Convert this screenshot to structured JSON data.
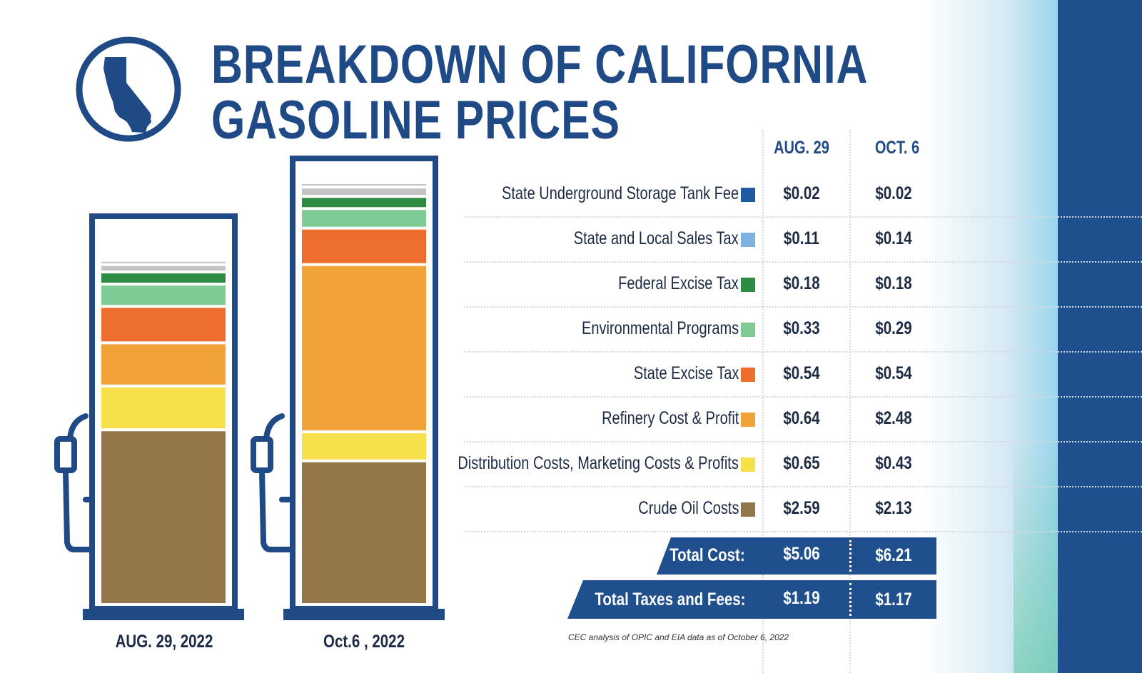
{
  "title_lines": [
    "BREAKDOWN OF CALIFORNIA",
    "GASOLINE PRICES"
  ],
  "colors": {
    "brand_blue": "#1f4f8c",
    "text_dark": "#1c2a44"
  },
  "chart_data": {
    "type": "bar",
    "stacked": true,
    "title": "BREAKDOWN OF CALIFORNIA GASOLINE PRICES",
    "categories": [
      "AUG. 29, 2022",
      "Oct.6 , 2022"
    ],
    "column_headers": [
      "AUG. 29",
      "OCT. 6"
    ],
    "series": [
      {
        "name": "State Underground Storage Tank Fee",
        "color": "#1f5aa0",
        "values": [
          0.02,
          0.02
        ],
        "labels": [
          "$0.02",
          "$0.02"
        ],
        "bar_color": "#c4c4c4"
      },
      {
        "name": "State and Local Sales Tax",
        "color": "#7fb2e0",
        "values": [
          0.11,
          0.14
        ],
        "labels": [
          "$0.11",
          "$0.14"
        ],
        "bar_color": "#c4c4c4"
      },
      {
        "name": "Federal Excise Tax",
        "color": "#2e8b43",
        "values": [
          0.18,
          0.18
        ],
        "labels": [
          "$0.18",
          "$0.18"
        ],
        "bar_color": "#2e8b43"
      },
      {
        "name": "Environmental Programs",
        "color": "#7ecb96",
        "values": [
          0.33,
          0.29
        ],
        "labels": [
          "$0.33",
          "$0.29"
        ],
        "bar_color": "#7ecb96"
      },
      {
        "name": "State Excise Tax",
        "color": "#ec6d2c",
        "values": [
          0.54,
          0.54
        ],
        "labels": [
          "$0.54",
          "$0.54"
        ],
        "bar_color": "#ec6d2c"
      },
      {
        "name": "Refinery Cost & Profit",
        "color": "#f1a33a",
        "values": [
          0.64,
          2.48
        ],
        "labels": [
          "$0.64",
          "$2.48"
        ],
        "bar_color": "#f1a33a"
      },
      {
        "name": "Distribution Costs, Marketing Costs & Profits",
        "color": "#f7e04b",
        "values": [
          0.65,
          0.43
        ],
        "labels": [
          "$0.65",
          "$0.43"
        ],
        "bar_color": "#f7e04b"
      },
      {
        "name": "Crude Oil Costs",
        "color": "#94764b",
        "values": [
          2.59,
          2.13
        ],
        "labels": [
          "$2.59",
          "$2.13"
        ],
        "bar_color": "#94764b"
      }
    ],
    "totals": [
      {
        "label": "Total Cost:",
        "values": [
          "$5.06",
          "$6.21"
        ]
      },
      {
        "label": "Total Taxes and Fees:",
        "values": [
          "$1.19",
          "$1.17"
        ]
      }
    ],
    "source_note": "CEC analysis of OPIC and EIA data as of October 6, 2022"
  }
}
